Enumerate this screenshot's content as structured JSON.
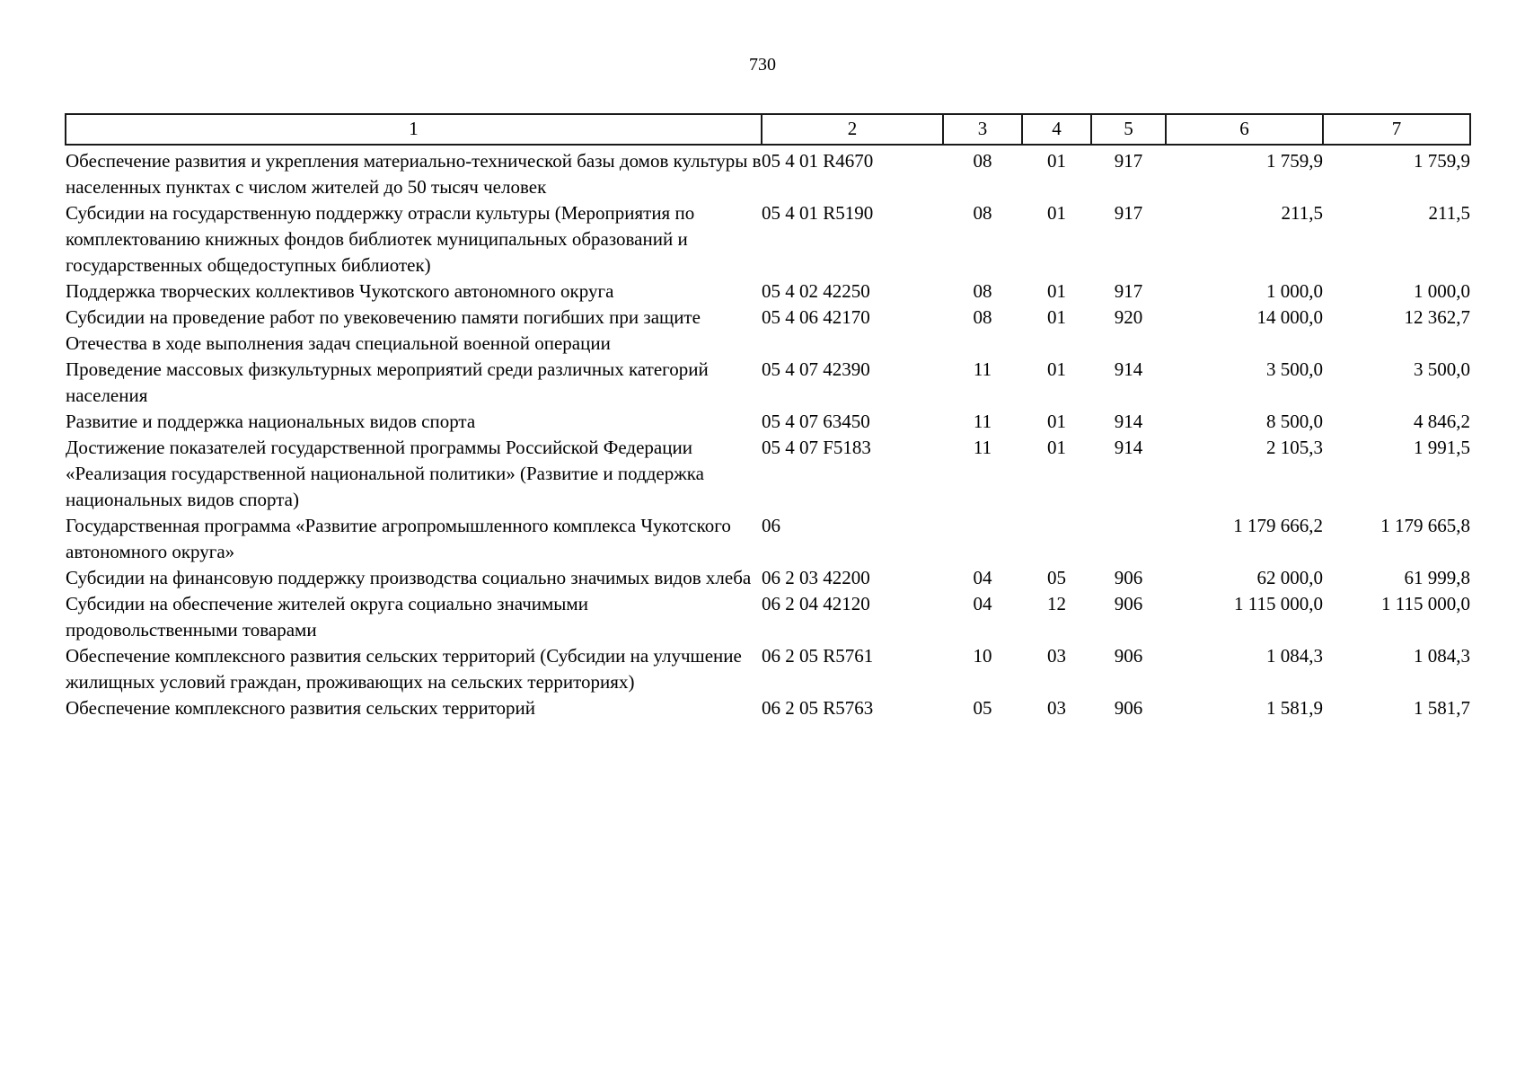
{
  "page_number": "730",
  "table": {
    "headers": [
      "1",
      "2",
      "3",
      "4",
      "5",
      "6",
      "7"
    ],
    "rows": [
      [
        "Обеспечение развития и укрепления материально-технической базы домов культуры в населенных пунктах с числом жителей до 50 тысяч человек",
        "05 4 01 R4670",
        "08",
        "01",
        "917",
        "1 759,9",
        "1 759,9"
      ],
      [
        "Субсидии на государственную поддержку отрасли культуры (Мероприятия по комплектованию книжных фондов библиотек муниципальных образований и государственных общедоступных библиотек)",
        "05 4 01 R5190",
        "08",
        "01",
        "917",
        "211,5",
        "211,5"
      ],
      [
        "Поддержка творческих коллективов Чукотского автономного округа",
        "05 4 02 42250",
        "08",
        "01",
        "917",
        "1 000,0",
        "1 000,0"
      ],
      [
        "Субсидии на проведение работ по увековечению памяти погибших при защите Отечества в ходе выполнения задач специальной военной операции",
        "05 4 06 42170",
        "08",
        "01",
        "920",
        "14 000,0",
        "12 362,7"
      ],
      [
        "Проведение массовых физкультурных мероприятий среди различных категорий населения",
        "05 4 07 42390",
        "11",
        "01",
        "914",
        "3 500,0",
        "3 500,0"
      ],
      [
        "Развитие и поддержка национальных видов спорта",
        "05 4 07 63450",
        "11",
        "01",
        "914",
        "8 500,0",
        "4 846,2"
      ],
      [
        "Достижение показателей государственной программы Российской Федерации «Реализация государственной национальной политики» (Развитие и поддержка национальных видов спорта)",
        "05 4 07 F5183",
        "11",
        "01",
        "914",
        "2 105,3",
        "1 991,5"
      ],
      [
        "Государственная программа «Развитие агропромышленного комплекса Чукотского автономного округа»",
        "06",
        "",
        "",
        "",
        "1 179 666,2",
        "1 179 665,8"
      ],
      [
        "Субсидии на финансовую поддержку производства социально значимых видов хлеба",
        "06 2 03 42200",
        "04",
        "05",
        "906",
        "62 000,0",
        "61 999,8"
      ],
      [
        "Субсидии на обеспечение жителей округа социально значимыми продовольственными товарами",
        "06 2 04 42120",
        "04",
        "12",
        "906",
        "1 115 000,0",
        "1 115 000,0"
      ],
      [
        "Обеспечение комплексного развития сельских территорий (Субсидии на улучшение жилищных условий граждан, проживающих на сельских территориях)",
        "06 2 05 R5761",
        "10",
        "03",
        "906",
        "1 084,3",
        "1 084,3"
      ],
      [
        "Обеспечение комплексного развития сельских территорий",
        "06 2 05 R5763",
        "05",
        "03",
        "906",
        "1 581,9",
        "1 581,7"
      ]
    ]
  }
}
